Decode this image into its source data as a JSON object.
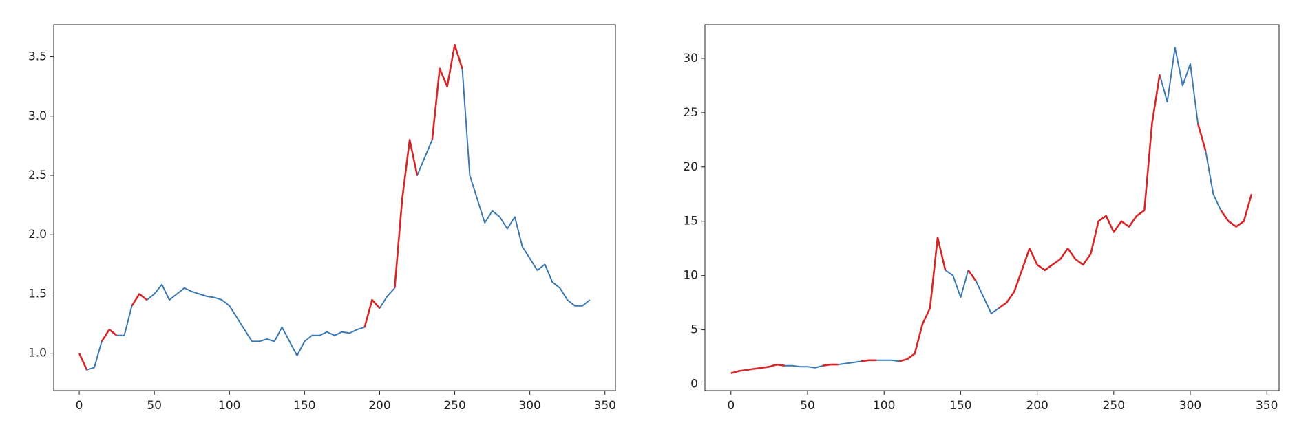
{
  "chart_data": [
    {
      "type": "line",
      "x": [
        0,
        5,
        10,
        15,
        20,
        25,
        30,
        35,
        40,
        45,
        50,
        55,
        60,
        65,
        70,
        75,
        80,
        85,
        90,
        95,
        100,
        105,
        110,
        115,
        120,
        125,
        130,
        135,
        140,
        145,
        150,
        155,
        160,
        165,
        170,
        175,
        180,
        185,
        190,
        195,
        200,
        205,
        210,
        215,
        220,
        225,
        230,
        235,
        240,
        245,
        250,
        255,
        260,
        265,
        270,
        275,
        280,
        285,
        290,
        295,
        300,
        305,
        310,
        315,
        320,
        325,
        330,
        335,
        340
      ],
      "series": [
        {
          "color": "#3a78b5",
          "values": [
            1.0,
            0.86,
            0.88,
            1.1,
            1.2,
            1.15,
            1.15,
            1.4,
            1.5,
            1.45,
            1.5,
            1.58,
            1.45,
            1.5,
            1.55,
            1.52,
            1.5,
            1.48,
            1.47,
            1.45,
            1.4,
            1.3,
            1.2,
            1.1,
            1.1,
            1.12,
            1.1,
            1.22,
            1.1,
            0.98,
            1.1,
            1.15,
            1.15,
            1.18,
            1.15,
            1.18,
            1.17,
            1.2,
            1.22,
            1.45,
            1.38,
            1.48,
            1.55,
            2.3,
            2.8,
            2.5,
            2.65,
            2.8,
            3.4,
            3.25,
            3.6,
            3.4,
            2.5,
            2.3,
            2.1,
            2.2,
            2.15,
            2.05,
            2.15,
            1.9,
            1.8,
            1.7,
            1.75,
            1.6,
            1.55,
            1.45,
            1.4,
            1.4,
            1.45
          ]
        },
        {
          "color": "#d62728",
          "values": [
            1.0,
            0.86,
            null,
            1.1,
            1.2,
            1.15,
            null,
            1.4,
            1.5,
            1.45,
            null,
            null,
            null,
            null,
            null,
            null,
            null,
            null,
            null,
            null,
            null,
            null,
            null,
            null,
            null,
            null,
            null,
            null,
            null,
            null,
            null,
            null,
            null,
            null,
            null,
            null,
            null,
            null,
            1.22,
            1.45,
            1.38,
            null,
            1.55,
            2.3,
            2.8,
            2.5,
            null,
            2.8,
            3.4,
            3.25,
            3.6,
            3.4,
            null,
            null,
            null,
            null,
            null,
            null,
            null,
            null,
            null,
            null,
            null,
            null,
            null,
            null,
            null,
            null,
            null
          ]
        }
      ],
      "xlim": [
        -17,
        357
      ],
      "xticks": [
        0,
        50,
        100,
        150,
        200,
        250,
        300,
        350
      ],
      "ylim": [
        0.685,
        3.77
      ],
      "yticks": [
        {
          "value": 1.0,
          "label": "1.0"
        },
        {
          "value": 1.5,
          "label": "1.5"
        },
        {
          "value": 2.0,
          "label": "2.0"
        },
        {
          "value": 2.5,
          "label": "2.5"
        },
        {
          "value": 3.0,
          "label": "3.0"
        },
        {
          "value": 3.5,
          "label": "3.5"
        }
      ]
    },
    {
      "type": "line",
      "x": [
        0,
        5,
        10,
        15,
        20,
        25,
        30,
        35,
        40,
        45,
        50,
        55,
        60,
        65,
        70,
        75,
        80,
        85,
        90,
        95,
        100,
        105,
        110,
        115,
        120,
        125,
        130,
        135,
        140,
        145,
        150,
        155,
        160,
        165,
        170,
        175,
        180,
        185,
        190,
        195,
        200,
        205,
        210,
        215,
        220,
        225,
        230,
        235,
        240,
        245,
        250,
        255,
        260,
        265,
        270,
        275,
        280,
        285,
        290,
        295,
        300,
        305,
        310,
        315,
        320,
        325,
        330,
        335,
        340
      ],
      "series": [
        {
          "color": "#3a78b5",
          "values": [
            1.0,
            1.2,
            1.3,
            1.4,
            1.5,
            1.6,
            1.8,
            1.7,
            1.7,
            1.6,
            1.6,
            1.5,
            1.7,
            1.8,
            1.8,
            1.9,
            2.0,
            2.1,
            2.2,
            2.2,
            2.2,
            2.2,
            2.1,
            2.3,
            2.8,
            5.5,
            7.0,
            13.5,
            10.5,
            10.0,
            8.0,
            10.5,
            9.5,
            8.0,
            6.5,
            7.0,
            7.5,
            8.5,
            10.5,
            12.5,
            11.0,
            10.5,
            11.0,
            11.5,
            12.5,
            11.5,
            11.0,
            12.0,
            15.0,
            15.5,
            14.0,
            15.0,
            14.5,
            15.5,
            16.0,
            24.0,
            28.5,
            26.0,
            31.0,
            27.5,
            29.5,
            24.0,
            21.5,
            17.5,
            16.0,
            15.0,
            14.5,
            15.0,
            17.5
          ]
        },
        {
          "color": "#d62728",
          "values": [
            1.0,
            1.2,
            1.3,
            1.4,
            1.5,
            1.6,
            1.8,
            1.7,
            null,
            null,
            null,
            null,
            1.7,
            1.8,
            1.8,
            null,
            null,
            2.1,
            2.2,
            2.2,
            null,
            null,
            2.1,
            2.3,
            2.8,
            5.5,
            7.0,
            13.5,
            10.5,
            null,
            null,
            10.5,
            9.5,
            null,
            null,
            7.0,
            7.5,
            8.5,
            10.5,
            12.5,
            11.0,
            10.5,
            11.0,
            11.5,
            12.5,
            11.5,
            11.0,
            12.0,
            15.0,
            15.5,
            14.0,
            15.0,
            14.5,
            15.5,
            16.0,
            24.0,
            28.5,
            null,
            null,
            null,
            null,
            24.0,
            21.5,
            null,
            16.0,
            15.0,
            14.5,
            15.0,
            17.5
          ]
        }
      ],
      "xlim": [
        -17,
        358
      ],
      "xticks": [
        0,
        50,
        100,
        150,
        200,
        250,
        300,
        350
      ],
      "ylim": [
        -0.6,
        33.1
      ],
      "yticks": [
        0,
        5,
        10,
        15,
        20,
        25,
        30
      ]
    }
  ]
}
